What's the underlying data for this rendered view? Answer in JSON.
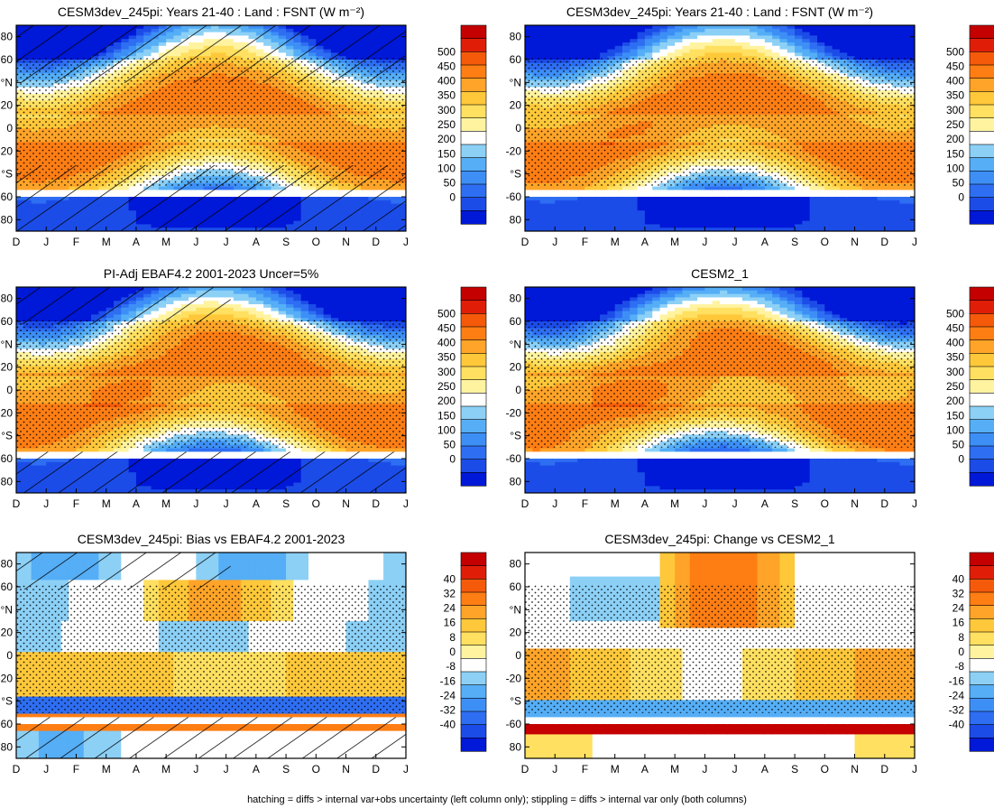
{
  "figure": {
    "footnote": "hatching = diffs > internal var+obs uncertainty (left column only); stippling = diffs > internal var only (both columns)"
  },
  "axes": {
    "months": [
      "D",
      "J",
      "F",
      "M",
      "A",
      "M",
      "J",
      "J",
      "A",
      "S",
      "O",
      "N",
      "D",
      "J"
    ],
    "lat_ticks": [
      "80",
      "60",
      "°N",
      "20",
      "0",
      "-20",
      "°S",
      "-60",
      "80"
    ]
  },
  "scales": {
    "abs": {
      "labels": [
        "500",
        "450",
        "400",
        "350",
        "300",
        "250",
        "200",
        "150",
        "100",
        "50",
        "0"
      ],
      "colors": [
        "#0018d8",
        "#1c4ce8",
        "#2e6ef2",
        "#3d8ff6",
        "#55aef6",
        "#8cd0f6",
        "#ffffff",
        "#fff3a0",
        "#ffe060",
        "#ffc83a",
        "#ffa428",
        "#ff7e14",
        "#f45a0a",
        "#e01e08",
        "#c40000"
      ]
    },
    "diff": {
      "labels": [
        "40",
        "32",
        "24",
        "16",
        "8",
        "0",
        "-8",
        "-16",
        "-24",
        "-32",
        "-40"
      ],
      "colors": [
        "#0018d8",
        "#1c4ce8",
        "#2e6ef2",
        "#3d8ff6",
        "#55aef6",
        "#8cd0f6",
        "#ffffff",
        "#fff3a0",
        "#ffe060",
        "#ffc83a",
        "#ffa428",
        "#ff7e14",
        "#f45a0a",
        "#e01e08",
        "#c40000"
      ]
    }
  },
  "chart_data": [
    {
      "type": "heatmap",
      "panel": "r1c1",
      "title": "CESM3dev_245pi: Years 21-40 : Land : FSNT (W m⁻²)",
      "x": "month (D..J)",
      "y": "latitude",
      "ylim": [
        -90,
        90
      ],
      "scale": "abs",
      "range": [
        0,
        500
      ],
      "hatching": "full",
      "stippling": true,
      "zonal_bands": [
        {
          "lat": "75N",
          "summer_max": 350,
          "winter_min": 10
        },
        {
          "lat": "45N",
          "summer_max": 400,
          "winter_min": 100
        },
        {
          "lat": "0",
          "annual": 330
        },
        {
          "lat": "30S",
          "summer_max": 410,
          "winter_min": 170
        },
        {
          "lat": "50S",
          "summer_max": 300,
          "winter_min": 80
        },
        {
          "lat": "75S",
          "summer_max": 80,
          "winter_min": 0
        }
      ]
    },
    {
      "type": "heatmap",
      "panel": "r1c2",
      "title": "CESM3dev_245pi: Years 21-40 : Land : FSNT (W m⁻²)",
      "x": "month (D..J)",
      "y": "latitude",
      "ylim": [
        -90,
        90
      ],
      "scale": "abs",
      "range": [
        0,
        500
      ],
      "hatching": "none",
      "stippling": true,
      "zonal_bands": [
        {
          "lat": "75N",
          "summer_max": 340,
          "winter_min": 10
        },
        {
          "lat": "45N",
          "summer_max": 390,
          "winter_min": 100
        },
        {
          "lat": "0",
          "annual": 320
        },
        {
          "lat": "30S",
          "summer_max": 400,
          "winter_min": 170
        },
        {
          "lat": "50S",
          "summer_max": 290,
          "winter_min": 80
        },
        {
          "lat": "75S",
          "summer_max": 70,
          "winter_min": 0
        }
      ]
    },
    {
      "type": "heatmap",
      "panel": "r2c1",
      "title": "PI-Adj EBAF4.2 2001-2023 Uncer=5%",
      "x": "month (D..J)",
      "y": "latitude",
      "ylim": [
        -90,
        90
      ],
      "scale": "abs",
      "range": [
        0,
        500
      ],
      "hatching": "partial",
      "stippling": true,
      "zonal_bands": [
        {
          "lat": "75N",
          "summer_max": 360,
          "winter_min": 10
        },
        {
          "lat": "45N",
          "summer_max": 410,
          "winter_min": 100
        },
        {
          "lat": "0",
          "annual": 325
        },
        {
          "lat": "30S",
          "summer_max": 410,
          "winter_min": 170
        },
        {
          "lat": "50S",
          "summer_max": 300,
          "winter_min": 80
        },
        {
          "lat": "75S",
          "summer_max": 75,
          "winter_min": 0
        }
      ]
    },
    {
      "type": "heatmap",
      "panel": "r2c2",
      "title": "CESM2_1",
      "x": "month (D..J)",
      "y": "latitude",
      "ylim": [
        -90,
        90
      ],
      "scale": "abs",
      "range": [
        0,
        500
      ],
      "hatching": "none",
      "stippling": true,
      "zonal_bands": [
        {
          "lat": "75N",
          "summer_max": 340,
          "winter_min": 10
        },
        {
          "lat": "45N",
          "summer_max": 390,
          "winter_min": 100
        },
        {
          "lat": "0",
          "annual": 320
        },
        {
          "lat": "30S",
          "summer_max": 400,
          "winter_min": 170
        },
        {
          "lat": "50S",
          "summer_max": 290,
          "winter_min": 80
        },
        {
          "lat": "75S",
          "summer_max": 70,
          "winter_min": 0
        }
      ]
    },
    {
      "type": "heatmap",
      "panel": "r3c1",
      "title": "CESM3dev_245pi: Bias vs EBAF4.2 2001-2023",
      "x": "month (D..J)",
      "y": "latitude",
      "ylim": [
        -90,
        90
      ],
      "scale": "diff",
      "range": [
        -40,
        40
      ],
      "hatching": "partial",
      "stippling": true,
      "features": [
        {
          "lat": "75N",
          "months": "J-O",
          "value": -20
        },
        {
          "lat": "40N",
          "months": "M-S",
          "value": 18
        },
        {
          "lat": "15N",
          "months": "D-J",
          "value": -14
        },
        {
          "lat": "15S",
          "months": "D-J",
          "value": 14
        },
        {
          "lat": "45S",
          "months": "D-J",
          "value": -30
        },
        {
          "lat": "62S",
          "months": "D-J",
          "value": 24
        },
        {
          "lat": "80S",
          "months": "D-M",
          "value": -20
        }
      ]
    },
    {
      "type": "heatmap",
      "panel": "r3c2",
      "title": "CESM3dev_245pi: Change vs CESM2_1",
      "x": "month (D..J)",
      "y": "latitude",
      "ylim": [
        -90,
        90
      ],
      "scale": "diff",
      "range": [
        -40,
        40
      ],
      "hatching": "none",
      "stippling": true,
      "features": [
        {
          "lat": "55N",
          "months": "F-A",
          "value": -16
        },
        {
          "lat": "60N",
          "months": "M-S",
          "value": 22
        },
        {
          "lat": "20S",
          "months": "D-J",
          "value": 18
        },
        {
          "lat": "45S",
          "months": "D-J",
          "value": -20
        },
        {
          "lat": "62S",
          "months": "D-J",
          "value": 40
        }
      ]
    }
  ]
}
